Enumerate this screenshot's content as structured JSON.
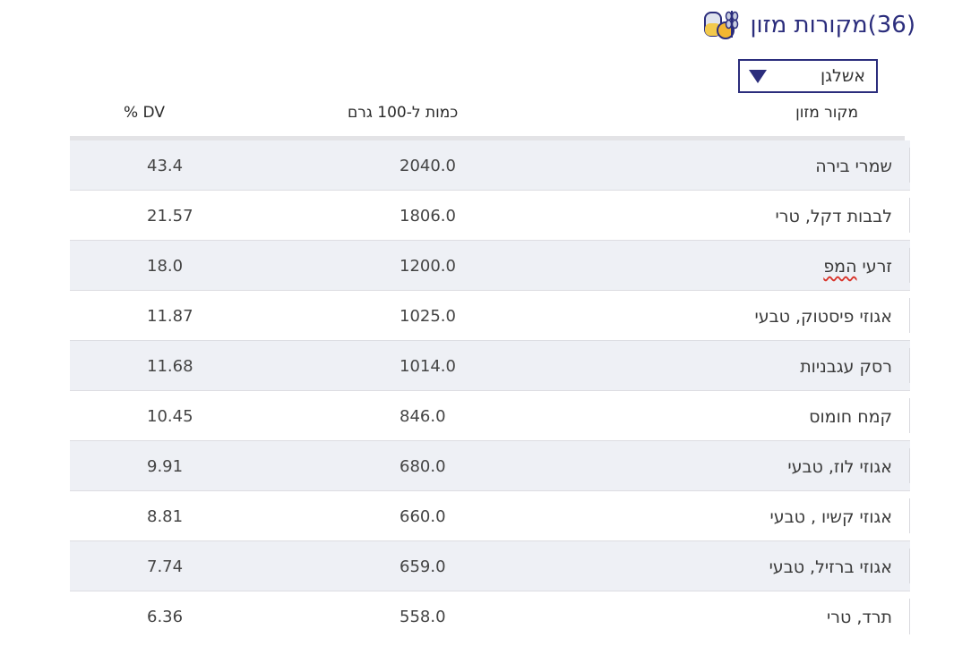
{
  "header": {
    "title": "(36)מקורות מזון",
    "icon": "food-sources-icon"
  },
  "filter": {
    "selected": "אשלגן"
  },
  "table": {
    "columns": {
      "source": "מקור מזון",
      "amount": "כמות ל-100 גרם",
      "dv": "% DV"
    },
    "rows": [
      {
        "source": "שמרי בירה",
        "amount": "2040.0",
        "dv": "43.4"
      },
      {
        "source": "לבבות דקל, טרי",
        "amount": "1806.0",
        "dv": "21.57"
      },
      {
        "source": "זרעי",
        "source_b": "המפ",
        "amount": "1200.0",
        "dv": "18.0"
      },
      {
        "source": "אגוזי פיסטוק, טבעי",
        "amount": "1025.0",
        "dv": "11.87"
      },
      {
        "source": "רסק עגבניות",
        "amount": "1014.0",
        "dv": "11.68"
      },
      {
        "source": "קמח חומוס",
        "amount": "846.0",
        "dv": "10.45"
      },
      {
        "source": "אגוזי לוז, טבעי",
        "amount": "680.0",
        "dv": "9.91"
      },
      {
        "source": "אגוזי קשיו , טבעי",
        "amount": "660.0",
        "dv": "8.81"
      },
      {
        "source": "אגוזי ברזיל, טבעי",
        "amount": "659.0",
        "dv": "7.74"
      },
      {
        "source": "תרד, טרי",
        "amount": "558.0",
        "dv": "6.36"
      }
    ]
  },
  "colors": {
    "accent": "#2b2d7c",
    "row_shade": "#eef0f5",
    "spellcheck": "#d9342b"
  }
}
